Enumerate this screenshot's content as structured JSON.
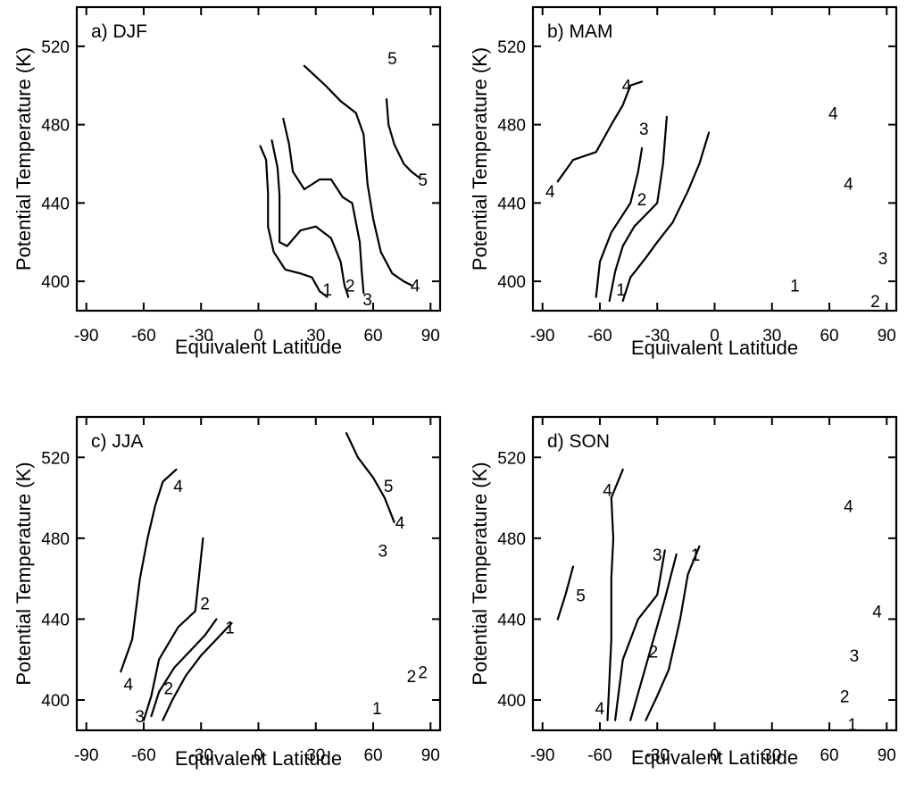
{
  "chart_data": [
    {
      "type": "line",
      "panel_label": "a) DJF",
      "xlabel": "Equivalent Latitude",
      "ylabel": "Potential Temperature (K)",
      "xlim": [
        -95,
        95
      ],
      "ylim": [
        385,
        540
      ],
      "xticks": [
        -90,
        -60,
        -30,
        0,
        30,
        60,
        90
      ],
      "yticks": [
        400,
        440,
        480,
        520
      ],
      "series": [
        {
          "name": "1",
          "label_at": [
            [
              36,
              396
            ]
          ],
          "points": [
            [
              1,
              469
            ],
            [
              4,
              462
            ],
            [
              5,
              445
            ],
            [
              5,
              428
            ],
            [
              8,
              415
            ],
            [
              14,
              406
            ],
            [
              22,
              404
            ],
            [
              28,
              402
            ],
            [
              32,
              395
            ],
            [
              36,
              392
            ]
          ]
        },
        {
          "name": "2",
          "label_at": [
            [
              48,
              398
            ]
          ],
          "points": [
            [
              7,
              472
            ],
            [
              10,
              458
            ],
            [
              11,
              444
            ],
            [
              11,
              430
            ],
            [
              11,
              420
            ],
            [
              15,
              418
            ],
            [
              22,
              426
            ],
            [
              30,
              428
            ],
            [
              38,
              422
            ],
            [
              43,
              410
            ],
            [
              45,
              398
            ],
            [
              47,
              392
            ]
          ]
        },
        {
          "name": "3",
          "label_at": [
            [
              57,
              391
            ]
          ],
          "points": [
            [
              13,
              483
            ],
            [
              16,
              470
            ],
            [
              18,
              456
            ],
            [
              24,
              447
            ],
            [
              32,
              452
            ],
            [
              38,
              452
            ],
            [
              44,
              443
            ],
            [
              49,
              440
            ],
            [
              53,
              420
            ],
            [
              54,
              405
            ],
            [
              55,
              394
            ]
          ]
        },
        {
          "name": "4",
          "label_at": [
            [
              82,
              398
            ]
          ],
          "points": [
            [
              24,
              510
            ],
            [
              35,
              500
            ],
            [
              43,
              492
            ],
            [
              51,
              486
            ],
            [
              55,
              475
            ],
            [
              57,
              450
            ],
            [
              60,
              432
            ],
            [
              64,
              415
            ],
            [
              70,
              404
            ],
            [
              76,
              400
            ],
            [
              80,
              398
            ]
          ]
        },
        {
          "name": "5",
          "label_at": [
            [
              70,
              514
            ],
            [
              86,
              452
            ]
          ],
          "points": [
            [
              67,
              493
            ],
            [
              68,
              480
            ],
            [
              71,
              470
            ],
            [
              76,
              460
            ],
            [
              80,
              456
            ],
            [
              84,
              453
            ]
          ]
        }
      ]
    },
    {
      "type": "line",
      "panel_label": "b) MAM",
      "xlabel": "Equivalent Latitude",
      "ylabel": "Potential Temperature (K)",
      "xlim": [
        -95,
        95
      ],
      "ylim": [
        385,
        540
      ],
      "xticks": [
        -90,
        -60,
        -30,
        0,
        30,
        60,
        90
      ],
      "yticks": [
        400,
        440,
        480,
        520
      ],
      "series": [
        {
          "name": "1",
          "label_at": [
            [
              -49,
              396
            ],
            [
              42,
              398
            ]
          ],
          "points": [
            [
              -48,
              390
            ],
            [
              -44,
              402
            ],
            [
              -36,
              412
            ],
            [
              -30,
              420
            ],
            [
              -22,
              430
            ],
            [
              -14,
              446
            ],
            [
              -8,
              460
            ],
            [
              -3,
              476
            ]
          ]
        },
        {
          "name": "2",
          "label_at": [
            [
              -38,
              442
            ],
            [
              84,
              390
            ]
          ],
          "points": [
            [
              -55,
              390
            ],
            [
              -52,
              405
            ],
            [
              -48,
              418
            ],
            [
              -42,
              428
            ],
            [
              -36,
              434
            ],
            [
              -30,
              440
            ],
            [
              -27,
              460
            ],
            [
              -25,
              484
            ]
          ]
        },
        {
          "name": "3",
          "label_at": [
            [
              -37,
              478
            ],
            [
              88,
              412
            ]
          ],
          "points": [
            [
              -62,
              392
            ],
            [
              -60,
              410
            ],
            [
              -54,
              425
            ],
            [
              -44,
              440
            ],
            [
              -40,
              456
            ],
            [
              -38,
              468
            ]
          ]
        },
        {
          "name": "4",
          "label_at": [
            [
              -46,
              500
            ],
            [
              -86,
              446
            ],
            [
              62,
              486
            ],
            [
              70,
              450
            ]
          ],
          "points": [
            [
              -82,
              451
            ],
            [
              -74,
              462
            ],
            [
              -62,
              466
            ],
            [
              -54,
              480
            ],
            [
              -48,
              490
            ],
            [
              -44,
              500
            ],
            [
              -38,
              502
            ]
          ]
        }
      ]
    },
    {
      "type": "line",
      "panel_label": "c) JJA",
      "xlabel": "Equivalent Latitude",
      "ylabel": "Potential Temperature (K)",
      "xlim": [
        -95,
        95
      ],
      "ylim": [
        385,
        540
      ],
      "xticks": [
        -90,
        -60,
        -30,
        0,
        30,
        60,
        90
      ],
      "yticks": [
        400,
        440,
        480,
        520
      ],
      "series": [
        {
          "name": "1",
          "label_at": [
            [
              -15,
              436
            ],
            [
              62,
              396
            ]
          ],
          "points": [
            [
              -50,
              390
            ],
            [
              -45,
              400
            ],
            [
              -38,
              412
            ],
            [
              -30,
              422
            ],
            [
              -22,
              430
            ],
            [
              -14,
              438
            ]
          ]
        },
        {
          "name": "2",
          "label_at": [
            [
              -47,
              406
            ],
            [
              -28,
              448
            ],
            [
              80,
              412
            ],
            [
              86,
              414
            ]
          ],
          "points": [
            [
              -56,
              392
            ],
            [
              -52,
              404
            ],
            [
              -44,
              416
            ],
            [
              -36,
              424
            ],
            [
              -28,
              432
            ],
            [
              -22,
              440
            ]
          ]
        },
        {
          "name": "3",
          "label_at": [
            [
              -62,
              392
            ],
            [
              65,
              474
            ]
          ],
          "points": [
            [
              -60,
              390
            ],
            [
              -56,
              402
            ],
            [
              -52,
              420
            ],
            [
              -42,
              436
            ],
            [
              -33,
              444
            ],
            [
              -29,
              480
            ]
          ]
        },
        {
          "name": "4",
          "label_at": [
            [
              -68,
              408
            ],
            [
              -42,
              506
            ],
            [
              74,
              488
            ]
          ],
          "points": [
            [
              -72,
              414
            ],
            [
              -66,
              430
            ],
            [
              -62,
              460
            ],
            [
              -58,
              480
            ],
            [
              -54,
              496
            ],
            [
              -50,
              508
            ],
            [
              -43,
              514
            ]
          ]
        },
        {
          "name": "5",
          "label_at": [
            [
              68,
              506
            ]
          ],
          "points": [
            [
              46,
              532
            ],
            [
              52,
              520
            ],
            [
              60,
              510
            ],
            [
              66,
              500
            ],
            [
              71,
              488
            ]
          ]
        }
      ]
    },
    {
      "type": "line",
      "panel_label": "d) SON",
      "xlabel": "Equivalent Latitude",
      "ylabel": "Potential Temperature (K)",
      "xlim": [
        -95,
        95
      ],
      "ylim": [
        385,
        540
      ],
      "xticks": [
        -90,
        -60,
        -30,
        0,
        30,
        60,
        90
      ],
      "yticks": [
        400,
        440,
        480,
        520
      ],
      "series": [
        {
          "name": "1",
          "label_at": [
            [
              -10,
              472
            ],
            [
              72,
              388
            ]
          ],
          "points": [
            [
              -36,
              390
            ],
            [
              -30,
              402
            ],
            [
              -24,
              415
            ],
            [
              -18,
              440
            ],
            [
              -14,
              462
            ],
            [
              -8,
              476
            ]
          ]
        },
        {
          "name": "2",
          "label_at": [
            [
              -32,
              424
            ],
            [
              68,
              402
            ]
          ],
          "points": [
            [
              -44,
              390
            ],
            [
              -38,
              410
            ],
            [
              -32,
              430
            ],
            [
              -26,
              450
            ],
            [
              -20,
              472
            ]
          ]
        },
        {
          "name": "3",
          "label_at": [
            [
              -30,
              472
            ],
            [
              73,
              422
            ]
          ],
          "points": [
            [
              -52,
              390
            ],
            [
              -48,
              420
            ],
            [
              -40,
              440
            ],
            [
              -30,
              452
            ],
            [
              -26,
              474
            ]
          ]
        },
        {
          "name": "4",
          "label_at": [
            [
              -60,
              396
            ],
            [
              -56,
              504
            ],
            [
              70,
              496
            ],
            [
              85,
              444
            ]
          ],
          "points": [
            [
              -56,
              390
            ],
            [
              -54,
              430
            ],
            [
              -54,
              460
            ],
            [
              -53,
              480
            ],
            [
              -54,
              500
            ],
            [
              -48,
              514
            ]
          ]
        },
        {
          "name": "5",
          "label_at": [
            [
              -70,
              452
            ]
          ],
          "points": [
            [
              -82,
              440
            ],
            [
              -78,
              452
            ],
            [
              -74,
              466
            ]
          ]
        }
      ]
    }
  ]
}
